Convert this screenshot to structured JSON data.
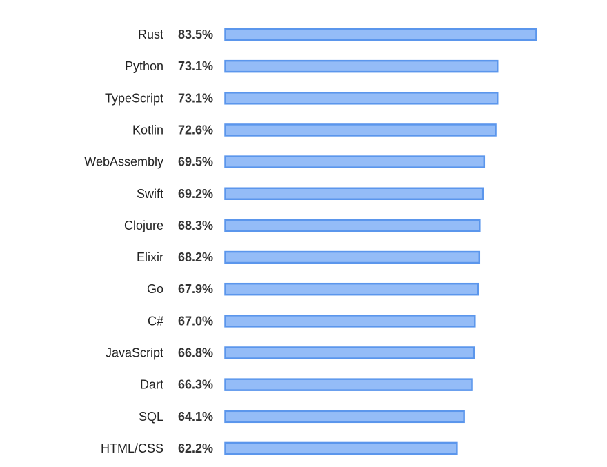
{
  "colors": {
    "bar_fill": "#94bcf7",
    "bar_stroke": "#5b96ec",
    "label_text": "#222222",
    "value_text": "#333333",
    "background": "#ffffff"
  },
  "chart_data": {
    "type": "bar",
    "orientation": "horizontal",
    "title": "",
    "xlabel": "",
    "ylabel": "",
    "grid": false,
    "legend": "none",
    "xlim": [
      0,
      100
    ],
    "categories": [
      "Rust",
      "Python",
      "TypeScript",
      "Kotlin",
      "WebAssembly",
      "Swift",
      "Clojure",
      "Elixir",
      "Go",
      "C#",
      "JavaScript",
      "Dart",
      "SQL",
      "HTML/CSS"
    ],
    "values": [
      83.5,
      73.1,
      73.1,
      72.6,
      69.5,
      69.2,
      68.3,
      68.2,
      67.9,
      67.0,
      66.8,
      66.3,
      64.1,
      62.2
    ],
    "value_labels": [
      "83.5%",
      "73.1%",
      "73.1%",
      "72.6%",
      "69.5%",
      "69.2%",
      "68.3%",
      "68.2%",
      "67.9%",
      "67.0%",
      "66.8%",
      "66.3%",
      "64.1%",
      "62.2%"
    ]
  }
}
